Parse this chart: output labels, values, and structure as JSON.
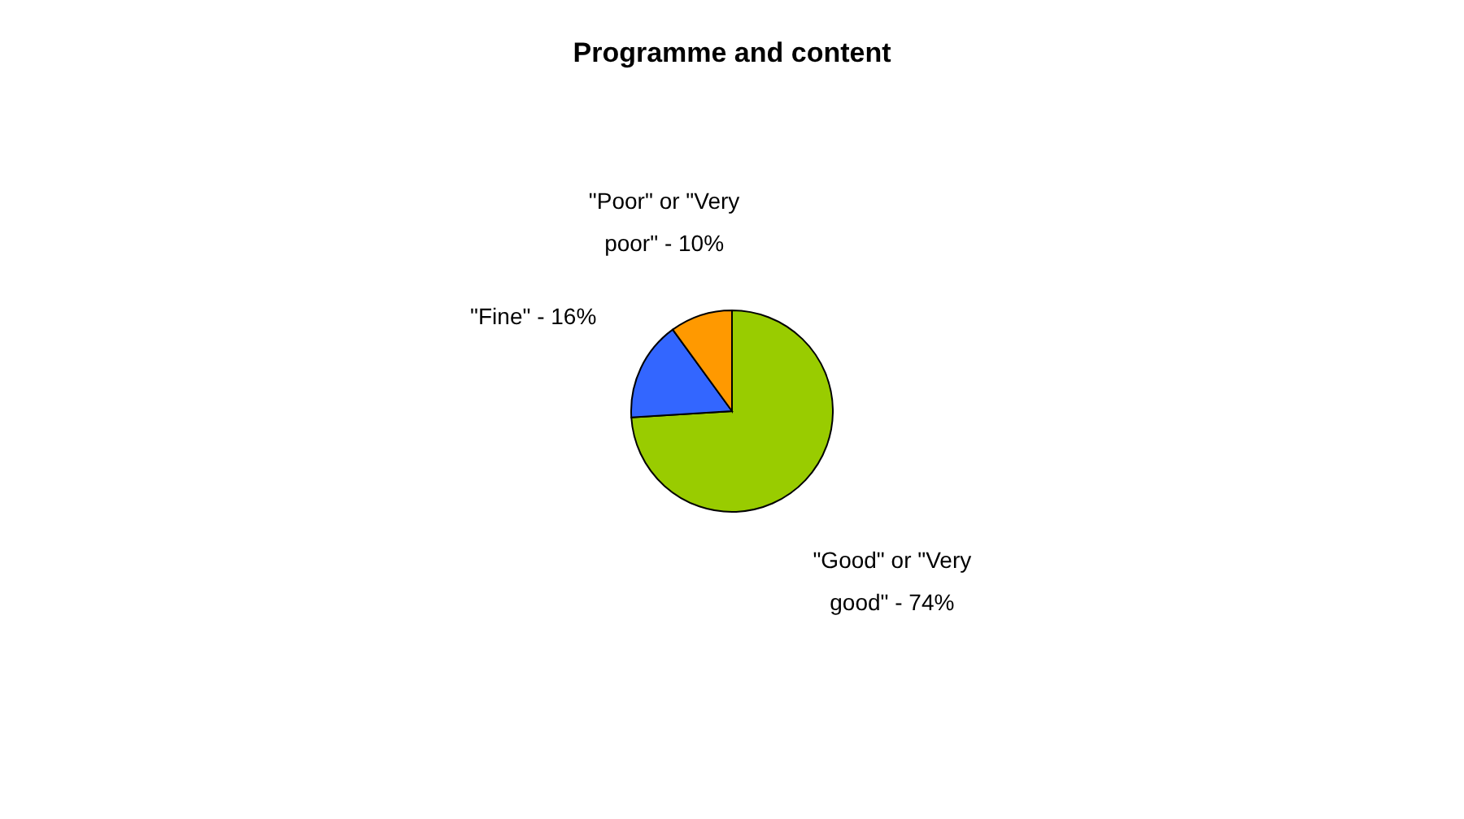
{
  "chart_data": {
    "type": "pie",
    "title": "Programme and content",
    "categories": [
      "\"Good\" or \"Very good\" - 74%",
      "\"Fine\" - 16%",
      "\"Poor\" or \"Very poor\" - 10%"
    ],
    "values": [
      74,
      16,
      10
    ],
    "colors": [
      "#99cc00",
      "#3366ff",
      "#ff9900"
    ]
  }
}
